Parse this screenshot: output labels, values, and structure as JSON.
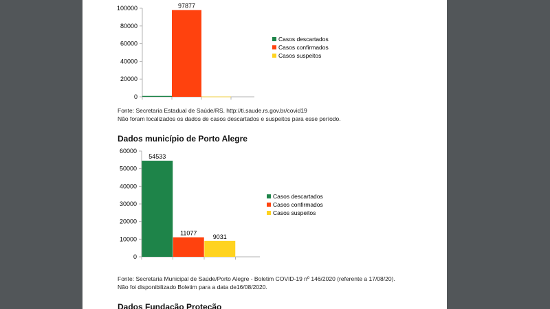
{
  "viewer": {
    "background_color": "#525659",
    "page_color": "#ffffff"
  },
  "legend_labels": [
    "Casos descartados",
    "Casos confirmados",
    "Casos suspeitos"
  ],
  "colors": {
    "descartados": "#1e8449",
    "confirmados": "#ff420e",
    "suspeitos": "#ffd320"
  },
  "chart_data": [
    {
      "type": "bar",
      "categories": [
        "Casos descartados",
        "Casos confirmados",
        "Casos suspeitos"
      ],
      "values": [
        1000,
        97877,
        300
      ],
      "data_labels": [
        "",
        "97877",
        ""
      ],
      "yticks": [
        "0",
        "20000",
        "40000",
        "60000",
        "80000",
        "100000"
      ],
      "ylim": [
        0,
        100000
      ],
      "legend": "right",
      "grid": false
    },
    {
      "type": "bar",
      "categories": [
        "Casos descartados",
        "Casos confirmados",
        "Casos suspeitos"
      ],
      "values": [
        54533,
        11077,
        9031
      ],
      "data_labels": [
        "54533",
        "11077",
        "9031"
      ],
      "yticks": [
        "0",
        "10000",
        "20000",
        "30000",
        "40000",
        "50000",
        "60000"
      ],
      "ylim": [
        0,
        60000
      ],
      "legend": "right",
      "grid": false
    }
  ],
  "state_section": {
    "source": "Fonte: Secretaria Estadual de Saúde/RS. http://ti.saude.rs.gov.br/covid19",
    "note": "Não foram localizados os dados de casos descartados e suspeitos para esse período."
  },
  "city_section": {
    "title": "Dados município de Porto Alegre",
    "source": "Fonte: Secretaria Municipal de Saúde/Porto Alegre - Boletim COVID-19 nº 146/2020 (referente a 17/08/20).",
    "note": "Não foi disponibilizado Boletim para a data de16/08/2020."
  },
  "next_section": {
    "title": "Dados Fundação Proteção"
  }
}
